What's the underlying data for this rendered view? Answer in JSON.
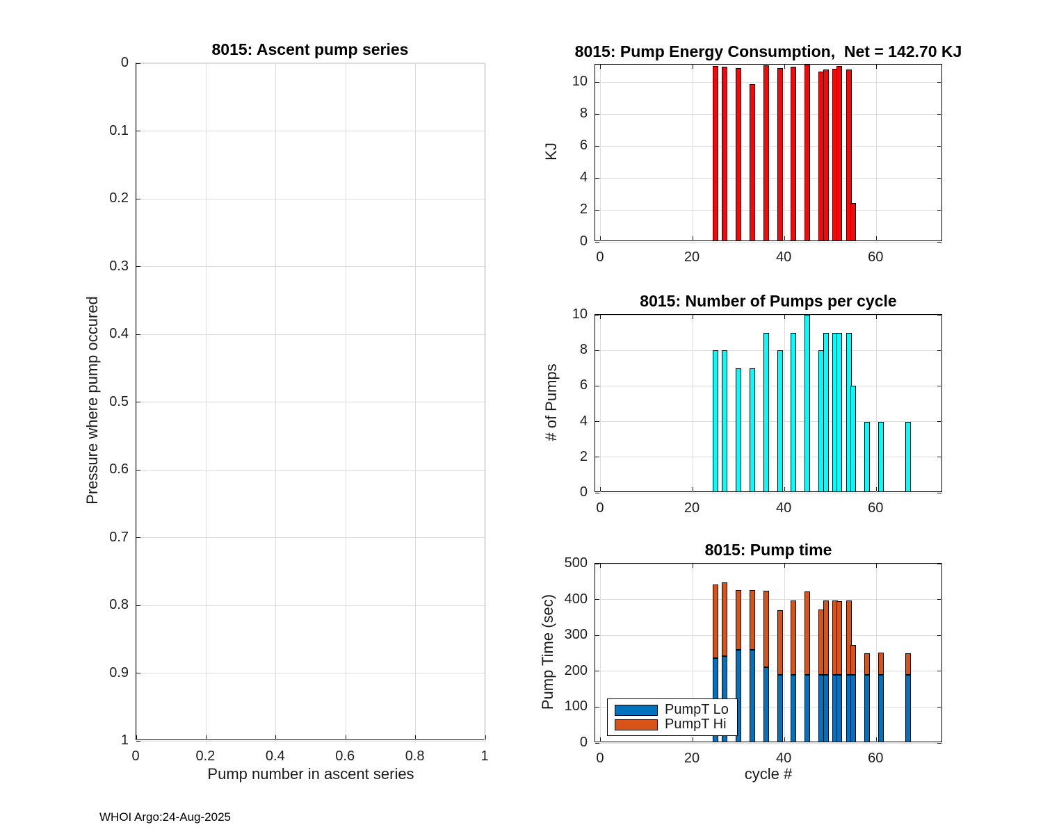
{
  "figure": {
    "background": "#ffffff"
  },
  "footer": {
    "text": "WHOI Argo:24-Aug-2025"
  },
  "chart_data": [
    {
      "id": "ascent-pump-series",
      "type": "scatter",
      "title": "8015: Ascent pump series",
      "xlabel": "Pump number in ascent series",
      "ylabel": "Pressure where pump occured",
      "xlim": [
        0,
        1
      ],
      "ylim": [
        0,
        1
      ],
      "y_reversed": true,
      "grid": true,
      "xticks": [
        "0",
        "0.2",
        "0.4",
        "0.6",
        "0.8",
        "1"
      ],
      "xtick_vals": [
        0,
        0.2,
        0.4,
        0.6,
        0.8,
        1
      ],
      "yticks": [
        "0",
        "0.1",
        "0.2",
        "0.3",
        "0.4",
        "0.5",
        "0.6",
        "0.7",
        "0.8",
        "0.9",
        "1"
      ],
      "ytick_vals": [
        0,
        0.1,
        0.2,
        0.3,
        0.4,
        0.5,
        0.6,
        0.7,
        0.8,
        0.9,
        1
      ],
      "points": []
    },
    {
      "id": "pump-energy",
      "type": "bar",
      "title": "8015: Pump Energy Consumption,  Net = 142.70 KJ",
      "net_kj": 142.7,
      "ylabel": "KJ",
      "xlim": [
        -1.2,
        74.5
      ],
      "ylim": [
        0,
        11.1
      ],
      "grid": true,
      "xticks": [
        "0",
        "20",
        "40",
        "60"
      ],
      "xtick_vals": [
        0,
        20,
        40,
        60
      ],
      "yticks": [
        "0",
        "2",
        "4",
        "6",
        "8",
        "10"
      ],
      "ytick_vals": [
        0,
        2,
        4,
        6,
        8,
        10
      ],
      "bar_color": "#fb0507",
      "categories": [
        25,
        27,
        30,
        33,
        36,
        39,
        42,
        45,
        48,
        49,
        51,
        52,
        54,
        55
      ],
      "values": [
        11.0,
        10.95,
        10.9,
        9.9,
        11.05,
        10.9,
        10.95,
        11.1,
        10.65,
        10.8,
        10.85,
        11.0,
        10.8,
        2.45
      ]
    },
    {
      "id": "pumps-per-cycle",
      "type": "bar",
      "title": "8015: Number of Pumps per cycle",
      "ylabel": "# of Pumps",
      "xlim": [
        -1.2,
        74.5
      ],
      "ylim": [
        0,
        10
      ],
      "grid": true,
      "xticks": [
        "0",
        "20",
        "40",
        "60"
      ],
      "xtick_vals": [
        0,
        20,
        40,
        60
      ],
      "yticks": [
        "0",
        "2",
        "4",
        "6",
        "8",
        "10"
      ],
      "ytick_vals": [
        0,
        2,
        4,
        6,
        8,
        10
      ],
      "bar_color": "#00ffff",
      "categories": [
        25,
        27,
        30,
        33,
        36,
        39,
        42,
        45,
        48,
        49,
        51,
        52,
        54,
        55,
        58,
        61,
        67
      ],
      "values": [
        8,
        8,
        7,
        7,
        9,
        8,
        9,
        10,
        8,
        9,
        9,
        9,
        9,
        6,
        4,
        4,
        4
      ]
    },
    {
      "id": "pump-time",
      "type": "bar-stacked",
      "title": "8015: Pump time",
      "xlabel": "cycle #",
      "ylabel": "Pump Time (sec)",
      "xlim": [
        -1.2,
        74.5
      ],
      "ylim": [
        0,
        500
      ],
      "grid": true,
      "xticks": [
        "0",
        "20",
        "40",
        "60"
      ],
      "xtick_vals": [
        0,
        20,
        40,
        60
      ],
      "yticks": [
        "0",
        "100",
        "200",
        "300",
        "400",
        "500"
      ],
      "ytick_vals": [
        0,
        100,
        200,
        300,
        400,
        500
      ],
      "categories": [
        25,
        27,
        30,
        33,
        36,
        39,
        42,
        45,
        48,
        49,
        51,
        52,
        54,
        55,
        58,
        61,
        67
      ],
      "series": [
        {
          "name": "PumpT Lo",
          "color": "#0072bd",
          "values": [
            237,
            243,
            259,
            259,
            212,
            190,
            190,
            190,
            190,
            190,
            190,
            190,
            190,
            190,
            190,
            190,
            190
          ]
        },
        {
          "name": "PumpT Hi",
          "color": "#d95319",
          "values": [
            205,
            204,
            167,
            167,
            213,
            180,
            208,
            232,
            182,
            207,
            208,
            205,
            208,
            84,
            60,
            62,
            60
          ]
        }
      ],
      "legend": {
        "position": "lower-left",
        "entries": [
          "PumpT Lo",
          "PumpT Hi"
        ]
      }
    }
  ]
}
